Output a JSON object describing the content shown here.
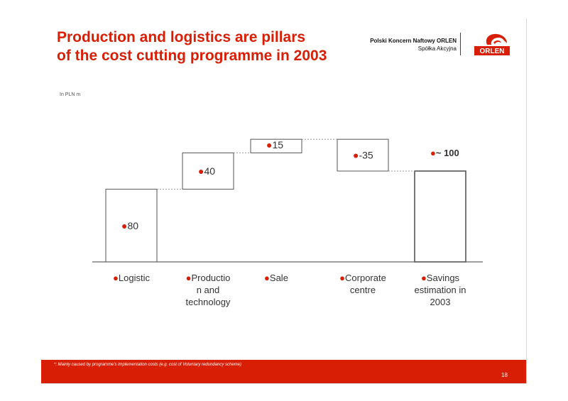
{
  "header": {
    "title_line1": "Production and logistics are pillars",
    "title_line2": "of the cost cutting programme in 2003",
    "company_line1": "Polski Koncern Naftowy ORLEN",
    "company_line2": "Spółka Akcyjna",
    "logo_text": "ORLEN"
  },
  "unit_label": "In PLN m",
  "colors": {
    "accent": "#d81e05",
    "bar_fill": "#ffffff",
    "bar_stroke": "#555555"
  },
  "chart_data": {
    "type": "bar",
    "subtype": "waterfall",
    "categories": [
      "●Logistic",
      "●Productio n and technology",
      "●Sale",
      "●Corporate centre",
      "●Savings estimation in 2003"
    ],
    "category_lines": [
      [
        "●Logistic"
      ],
      [
        "●Productio",
        "n and",
        "technology"
      ],
      [
        "●Sale"
      ],
      [
        "●Corporate",
        "centre"
      ],
      [
        "●Savings",
        "estimation in",
        "2003"
      ]
    ],
    "values": [
      80,
      40,
      15,
      -35,
      100
    ],
    "value_labels": [
      "●80",
      "●40",
      "●15",
      "●-35",
      "●~ 100"
    ],
    "total_index": 4,
    "ylim": [
      0,
      135
    ],
    "grid": false,
    "connectors": "dotted"
  },
  "footer": {
    "footnote": "*: Mainly caused by programme's implementation costs (e.g. cost of Voluntary redundancy scheme)",
    "page_number": "18"
  }
}
